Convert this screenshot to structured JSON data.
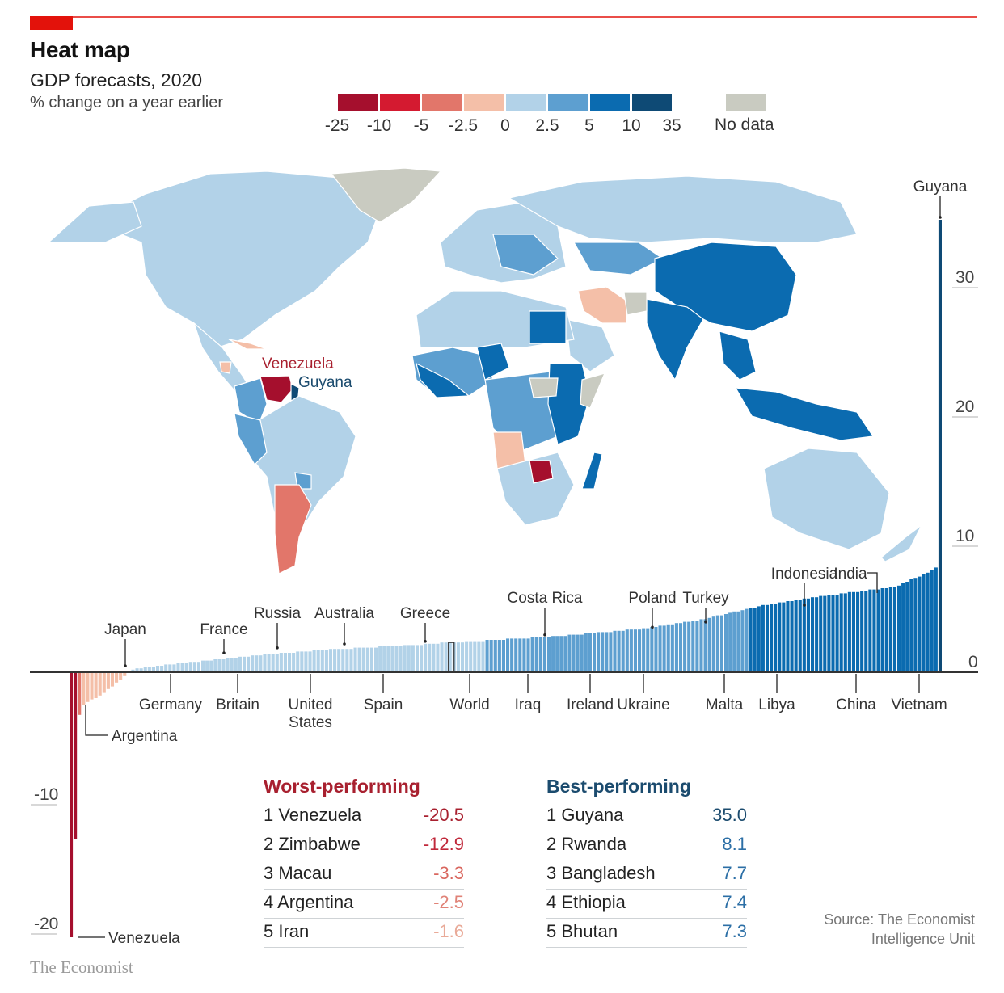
{
  "header": {
    "title": "Heat map",
    "subtitle": "GDP forecasts, 2020",
    "unit": "% change on a year earlier"
  },
  "legend": {
    "bins": [
      {
        "label": "-25",
        "color": "#a50f2d"
      },
      {
        "label": "-10",
        "color": "#d41a30"
      },
      {
        "label": "-5",
        "color": "#e2766a"
      },
      {
        "label": "-2.5",
        "color": "#f4bfa8"
      },
      {
        "label": "0",
        "color": "#b2d2e8"
      },
      {
        "label": "2.5",
        "color": "#5d9fd0"
      },
      {
        "label": "5",
        "color": "#0b6bb0"
      },
      {
        "label": "10",
        "color": "#0e4a75"
      }
    ],
    "end_label": "35",
    "no_data": {
      "label": "No data",
      "color": "#c9cbc1"
    }
  },
  "map": {
    "labels": [
      {
        "name": "Venezuela",
        "color": "#a8202f"
      },
      {
        "name": "Guyana",
        "color": "#1b4b6e"
      }
    ]
  },
  "chart_data": {
    "type": "bar",
    "title": "GDP forecasts, 2020",
    "ylabel": "% change on a year earlier",
    "ylim": [
      -21,
      35
    ],
    "yticks": [
      -20,
      -10,
      0,
      10,
      20,
      30
    ],
    "series_description": "Countries sorted by 2020 GDP forecast, ascending",
    "labeled_countries_above": [
      {
        "name": "Japan",
        "value": 0.3
      },
      {
        "name": "France",
        "value": 1.3
      },
      {
        "name": "Russia",
        "value": 1.7
      },
      {
        "name": "Australia",
        "value": 2.0
      },
      {
        "name": "Greece",
        "value": 2.2
      },
      {
        "name": "Costa Rica",
        "value": 2.7
      },
      {
        "name": "Poland",
        "value": 3.3
      },
      {
        "name": "Turkey",
        "value": 3.7
      },
      {
        "name": "Indonesia",
        "value": 5.0
      },
      {
        "name": "India",
        "value": 6.0
      },
      {
        "name": "Guyana",
        "value": 35.0
      }
    ],
    "labeled_countries_below": [
      {
        "name": "Venezuela",
        "value": -20.5
      },
      {
        "name": "Argentina",
        "value": -2.5
      },
      {
        "name": "Germany",
        "value": 1.0
      },
      {
        "name": "Britain",
        "value": 1.4
      },
      {
        "name": "United States",
        "value": 1.8
      },
      {
        "name": "Spain",
        "value": 2.0
      },
      {
        "name": "World",
        "value": 2.3
      },
      {
        "name": "Iraq",
        "value": 2.6
      },
      {
        "name": "Ireland",
        "value": 3.0
      },
      {
        "name": "Ukraine",
        "value": 3.2
      },
      {
        "name": "Malta",
        "value": 4.0
      },
      {
        "name": "Libya",
        "value": 4.5
      },
      {
        "name": "China",
        "value": 5.9
      },
      {
        "name": "Vietnam",
        "value": 6.5
      }
    ]
  },
  "worst": {
    "heading": "Worst-performing",
    "heading_color": "#a8202f",
    "rows": [
      {
        "rank": "1",
        "name": "Venezuela",
        "value": "-20.5",
        "color": "#a8202f"
      },
      {
        "rank": "2",
        "name": "Zimbabwe",
        "value": "-12.9",
        "color": "#c0283a"
      },
      {
        "rank": "3",
        "name": "Macau",
        "value": "-3.3",
        "color": "#d9665e"
      },
      {
        "rank": "4",
        "name": "Argentina",
        "value": "-2.5",
        "color": "#e08277"
      },
      {
        "rank": "5",
        "name": "Iran",
        "value": "-1.6",
        "color": "#e9aa98"
      }
    ]
  },
  "best": {
    "heading": "Best-performing",
    "heading_color": "#1b4b6e",
    "rows": [
      {
        "rank": "1",
        "name": "Guyana",
        "value": "35.0",
        "color": "#1b4b6e"
      },
      {
        "rank": "2",
        "name": "Rwanda",
        "value": "8.1",
        "color": "#2c6fa6"
      },
      {
        "rank": "3",
        "name": "Bangladesh",
        "value": "7.7",
        "color": "#2c6fa6"
      },
      {
        "rank": "4",
        "name": "Ethiopia",
        "value": "7.4",
        "color": "#2c6fa6"
      },
      {
        "rank": "5",
        "name": "Bhutan",
        "value": "7.3",
        "color": "#2c6fa6"
      }
    ]
  },
  "footer": {
    "source_line1": "Source: The Economist",
    "source_line2": "Intelligence Unit",
    "logo": "The Economist"
  }
}
